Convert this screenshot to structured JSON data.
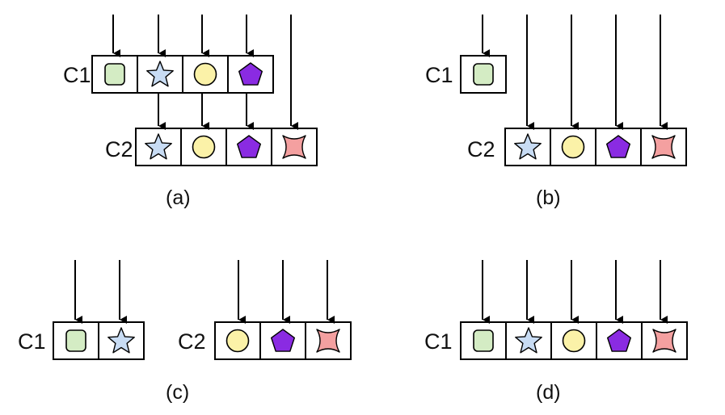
{
  "colors": {
    "square": "#d4ecc4",
    "star": "#c8dcf4",
    "circle": "#fbf2a8",
    "pentagon": "#8a2be2",
    "cross": "#f4a0a0",
    "outline": "#000000"
  },
  "panels": [
    {
      "caption": "(a)",
      "containers": [
        {
          "label": "C1",
          "items": [
            "square",
            "star",
            "circle",
            "pentagon"
          ]
        },
        {
          "label": "C2",
          "items": [
            "star",
            "circle",
            "pentagon",
            "cross"
          ]
        }
      ]
    },
    {
      "caption": "(b)",
      "containers": [
        {
          "label": "C1",
          "items": [
            "square"
          ]
        },
        {
          "label": "C2",
          "items": [
            "star",
            "circle",
            "pentagon",
            "cross"
          ]
        }
      ]
    },
    {
      "caption": "(c)",
      "containers": [
        {
          "label": "C1",
          "items": [
            "square",
            "star"
          ]
        },
        {
          "label": "C2",
          "items": [
            "circle",
            "pentagon",
            "cross"
          ]
        }
      ]
    },
    {
      "caption": "(d)",
      "containers": [
        {
          "label": "C1",
          "items": [
            "square",
            "star",
            "circle",
            "pentagon",
            "cross"
          ]
        }
      ]
    }
  ]
}
